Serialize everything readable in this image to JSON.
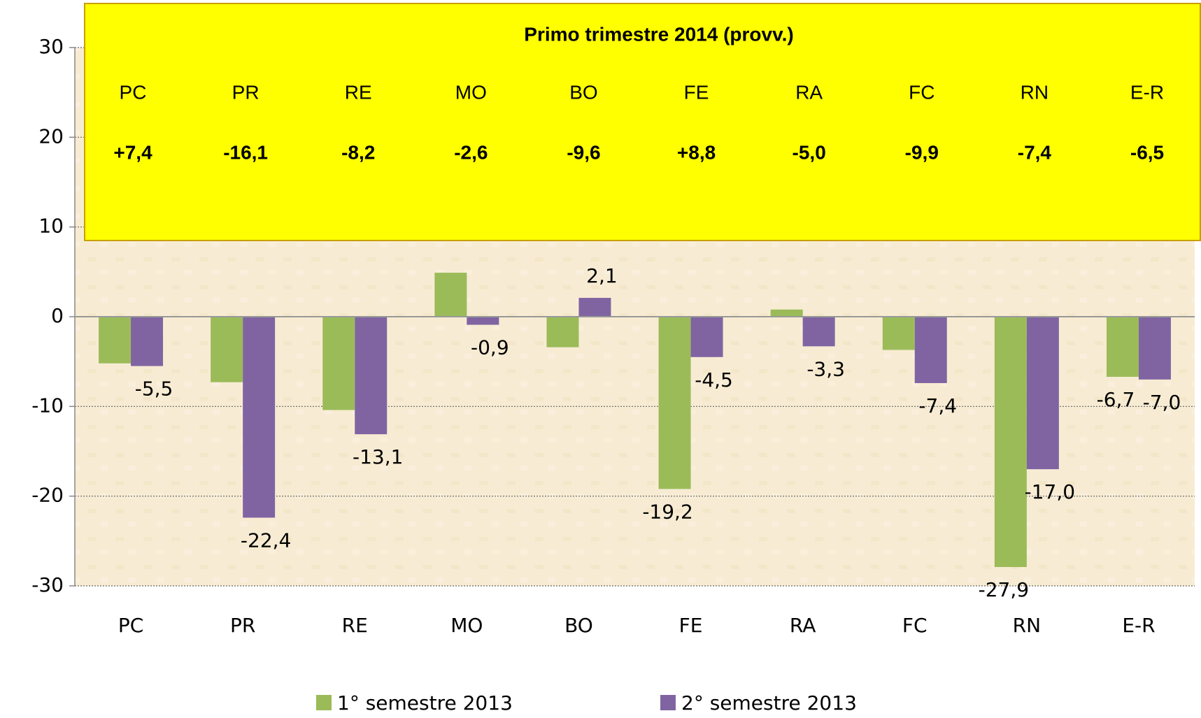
{
  "chart_data": {
    "type": "bar",
    "categories": [
      "PC",
      "PR",
      "RE",
      "MO",
      "BO",
      "FE",
      "RA",
      "FC",
      "RN",
      "E-R"
    ],
    "series": [
      {
        "name": "1° semestre 2013",
        "color": "#9bbb59",
        "values": [
          -5.2,
          -7.3,
          -10.4,
          4.9,
          -3.4,
          -19.2,
          0.8,
          -3.7,
          -27.9,
          -6.7
        ],
        "value_labels": [
          null,
          null,
          null,
          null,
          null,
          "-19,2",
          null,
          null,
          "-27,9",
          "-6,7"
        ]
      },
      {
        "name": "2° semestre 2013",
        "color": "#8064a2",
        "values": [
          -5.5,
          -22.4,
          -13.1,
          -0.9,
          2.1,
          -4.5,
          -3.3,
          -7.4,
          -17.0,
          -7.0
        ],
        "value_labels": [
          "-5,5",
          "-22,4",
          "-13,1",
          "-0,9",
          "2,1",
          "-4,5",
          "-3,3",
          "-7,4",
          "-17,0",
          "-7,0"
        ]
      }
    ],
    "ylim": [
      -30,
      30
    ],
    "yticks": [
      30,
      20,
      10,
      0,
      -10,
      -20,
      -30
    ],
    "grid": true,
    "legend": "bottom",
    "box": {
      "title": "Primo trimestre 2014 (provv.)",
      "categories": [
        "PC",
        "PR",
        "RE",
        "MO",
        "BO",
        "FE",
        "RA",
        "FC",
        "RN",
        "E-R"
      ],
      "values": [
        7.4,
        -16.1,
        -8.2,
        -2.6,
        -9.6,
        8.8,
        -5.0,
        -9.9,
        -7.4,
        -6.5
      ],
      "value_labels": [
        "+7,4",
        "-16,1",
        "-8,2",
        "-2,6",
        "-9,6",
        "+8,8",
        "-5,0",
        "-9,9",
        "-7,4",
        "-6,5"
      ],
      "color": "#ffff00",
      "positive_color": "#000000",
      "negative_color": "#ff0000"
    }
  }
}
